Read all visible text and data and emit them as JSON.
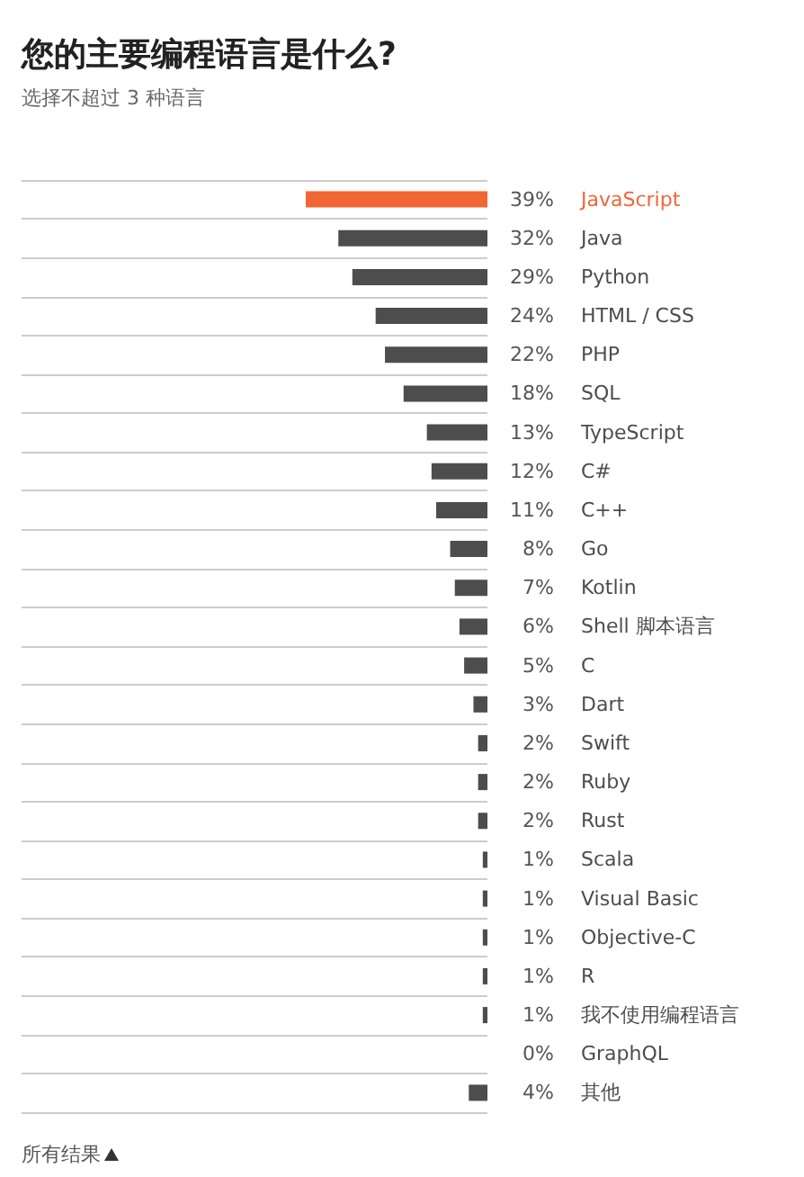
{
  "chart_data": {
    "type": "bar",
    "orientation": "horizontal",
    "title": "您的主要编程语言是什么?",
    "subtitle": "选择不超过 3 种语言",
    "categories": [
      "JavaScript",
      "Java",
      "Python",
      "HTML / CSS",
      "PHP",
      "SQL",
      "TypeScript",
      "C#",
      "C++",
      "Go",
      "Kotlin",
      "Shell 脚本语言",
      "C",
      "Dart",
      "Swift",
      "Ruby",
      "Rust",
      "Scala",
      "Visual Basic",
      "Objective-C",
      "R",
      "我不使用编程语言",
      "GraphQL",
      "其他"
    ],
    "values": [
      39,
      32,
      29,
      24,
      22,
      18,
      13,
      12,
      11,
      8,
      7,
      6,
      5,
      3,
      2,
      2,
      2,
      1,
      1,
      1,
      1,
      1,
      0,
      4
    ],
    "value_labels": [
      "39%",
      "32%",
      "29%",
      "24%",
      "22%",
      "18%",
      "13%",
      "12%",
      "11%",
      "8%",
      "7%",
      "6%",
      "5%",
      "3%",
      "2%",
      "2%",
      "2%",
      "1%",
      "1%",
      "1%",
      "1%",
      "1%",
      "0%",
      "4%"
    ],
    "colors": [
      "#f26535",
      "#4d4d4d",
      "#4d4d4d",
      "#4d4d4d",
      "#4d4d4d",
      "#4d4d4d",
      "#4d4d4d",
      "#4d4d4d",
      "#4d4d4d",
      "#4d4d4d",
      "#4d4d4d",
      "#4d4d4d",
      "#4d4d4d",
      "#4d4d4d",
      "#4d4d4d",
      "#4d4d4d",
      "#4d4d4d",
      "#4d4d4d",
      "#4d4d4d",
      "#4d4d4d",
      "#4d4d4d",
      "#4d4d4d",
      "#4d4d4d",
      "#4d4d4d"
    ],
    "xlim": [
      100,
      0
    ],
    "tick_labels": "y",
    "grid": "y",
    "annotations": [
      "所有结果"
    ]
  }
}
